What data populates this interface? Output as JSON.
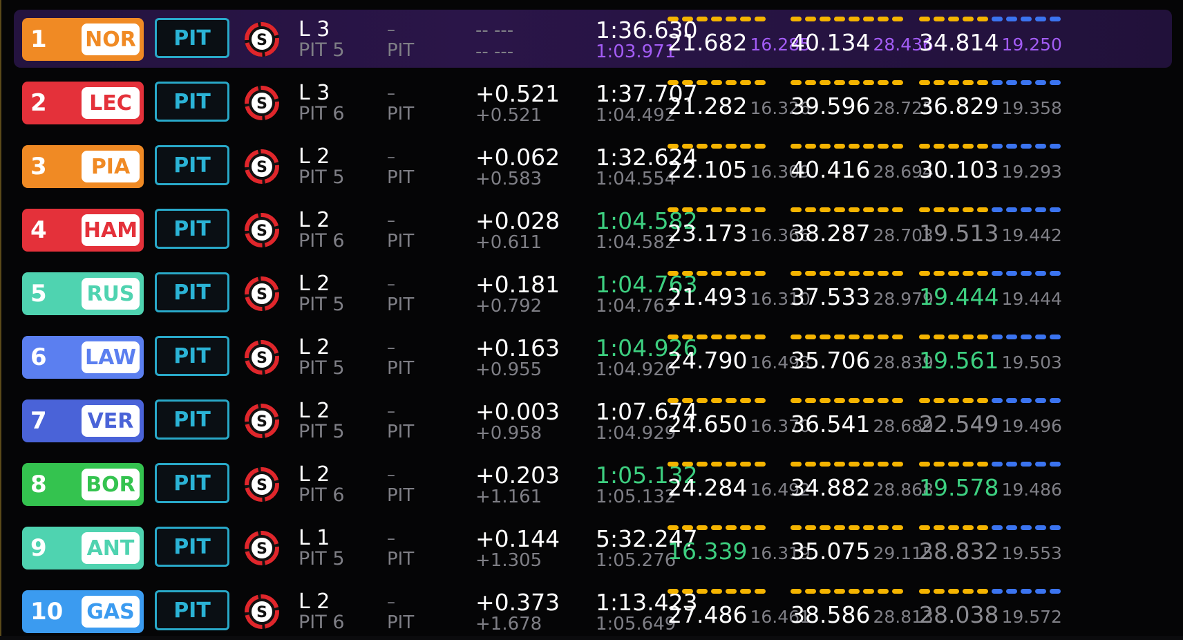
{
  "colors": {
    "bar_yellow": "#f5b400",
    "bar_blue": "#3b74f0",
    "pit": "#2bb3d6",
    "tyre_red": "#e0262b"
  },
  "rows": [
    {
      "pos": "1",
      "code": "NOR",
      "badge": "#f08a24",
      "code_color": "#f08a24",
      "pit": "PIT",
      "tyre": "S",
      "lap": "L 3",
      "pit_count": "PIT 5",
      "dash": "–",
      "pit_label": "PIT",
      "gap": "-- ---",
      "interval": "-- ---",
      "lap_time": "1:36.630",
      "best": "1:03.971",
      "best_cls": "purple",
      "lap_cls": "",
      "s1": "21.682",
      "s1b": "16.285",
      "s1cls": "",
      "s1bcls": "purple",
      "s2": "40.134",
      "s2b": "28.436",
      "s2cls": "",
      "s2bcls": "purple",
      "s3": "34.814",
      "s3b": "19.250",
      "s3cls": "",
      "s3bcls": "purple"
    },
    {
      "pos": "2",
      "code": "LEC",
      "badge": "#e4313a",
      "code_color": "#e4313a",
      "pit": "PIT",
      "tyre": "S",
      "lap": "L 3",
      "pit_count": "PIT 6",
      "dash": "–",
      "pit_label": "PIT",
      "gap": "+0.521",
      "interval": "+0.521",
      "lap_time": "1:37.707",
      "best": "1:04.492",
      "best_cls": "",
      "lap_cls": "",
      "s1": "21.282",
      "s1b": "16.326",
      "s1cls": "",
      "s1bcls": "",
      "s2": "39.596",
      "s2b": "28.725",
      "s2cls": "",
      "s2bcls": "",
      "s3": "36.829",
      "s3b": "19.358",
      "s3cls": "",
      "s3bcls": ""
    },
    {
      "pos": "3",
      "code": "PIA",
      "badge": "#f08a24",
      "code_color": "#f08a24",
      "pit": "PIT",
      "tyre": "S",
      "lap": "L 2",
      "pit_count": "PIT 5",
      "dash": "–",
      "pit_label": "PIT",
      "gap": "+0.062",
      "interval": "+0.583",
      "lap_time": "1:32.624",
      "best": "1:04.554",
      "best_cls": "",
      "lap_cls": "",
      "s1": "22.105",
      "s1b": "16.309",
      "s1cls": "",
      "s1bcls": "",
      "s2": "40.416",
      "s2b": "28.694",
      "s2cls": "",
      "s2bcls": "",
      "s3": "30.103",
      "s3b": "19.293",
      "s3cls": "",
      "s3bcls": ""
    },
    {
      "pos": "4",
      "code": "HAM",
      "badge": "#e4313a",
      "code_color": "#e4313a",
      "pit": "PIT",
      "tyre": "S",
      "lap": "L 2",
      "pit_count": "PIT 6",
      "dash": "–",
      "pit_label": "PIT",
      "gap": "+0.028",
      "interval": "+0.611",
      "lap_time": "1:04.582",
      "best": "1:04.582",
      "best_cls": "",
      "lap_cls": "green",
      "s1": "23.173",
      "s1b": "16.366",
      "s1cls": "",
      "s1bcls": "",
      "s2": "38.287",
      "s2b": "28.703",
      "s2cls": "",
      "s2bcls": "",
      "s3": "19.513",
      "s3b": "19.442",
      "s3cls": "grey",
      "s3bcls": ""
    },
    {
      "pos": "5",
      "code": "RUS",
      "badge": "#4fd3b0",
      "code_color": "#4fd3b0",
      "pit": "PIT",
      "tyre": "S",
      "lap": "L 2",
      "pit_count": "PIT 5",
      "dash": "–",
      "pit_label": "PIT",
      "gap": "+0.181",
      "interval": "+0.792",
      "lap_time": "1:04.763",
      "best": "1:04.763",
      "best_cls": "",
      "lap_cls": "green",
      "s1": "21.493",
      "s1b": "16.310",
      "s1cls": "",
      "s1bcls": "",
      "s2": "37.533",
      "s2b": "28.979",
      "s2cls": "",
      "s2bcls": "",
      "s3": "19.444",
      "s3b": "19.444",
      "s3cls": "green",
      "s3bcls": ""
    },
    {
      "pos": "6",
      "code": "LAW",
      "badge": "#5b7ff0",
      "code_color": "#5b7ff0",
      "pit": "PIT",
      "tyre": "S",
      "lap": "L 2",
      "pit_count": "PIT 5",
      "dash": "–",
      "pit_label": "PIT",
      "gap": "+0.163",
      "interval": "+0.955",
      "lap_time": "1:04.926",
      "best": "1:04.926",
      "best_cls": "",
      "lap_cls": "green",
      "s1": "24.790",
      "s1b": "16.493",
      "s1cls": "",
      "s1bcls": "",
      "s2": "35.706",
      "s2b": "28.839",
      "s2cls": "",
      "s2bcls": "",
      "s3": "19.561",
      "s3b": "19.503",
      "s3cls": "green",
      "s3bcls": ""
    },
    {
      "pos": "7",
      "code": "VER",
      "badge": "#4a63d8",
      "code_color": "#4a63d8",
      "pit": "PIT",
      "tyre": "S",
      "lap": "L 2",
      "pit_count": "PIT 5",
      "dash": "–",
      "pit_label": "PIT",
      "gap": "+0.003",
      "interval": "+0.958",
      "lap_time": "1:07.674",
      "best": "1:04.929",
      "best_cls": "",
      "lap_cls": "",
      "s1": "24.650",
      "s1b": "16.370",
      "s1cls": "",
      "s1bcls": "",
      "s2": "36.541",
      "s2b": "28.689",
      "s2cls": "",
      "s2bcls": "",
      "s3": "22.549",
      "s3b": "19.496",
      "s3cls": "grey",
      "s3bcls": ""
    },
    {
      "pos": "8",
      "code": "BOR",
      "badge": "#34c34f",
      "code_color": "#34c34f",
      "pit": "PIT",
      "tyre": "S",
      "lap": "L 2",
      "pit_count": "PIT 6",
      "dash": "–",
      "pit_label": "PIT",
      "gap": "+0.203",
      "interval": "+1.161",
      "lap_time": "1:05.132",
      "best": "1:05.132",
      "best_cls": "",
      "lap_cls": "green",
      "s1": "24.284",
      "s1b": "16.492",
      "s1cls": "",
      "s1bcls": "",
      "s2": "34.882",
      "s2b": "28.868",
      "s2cls": "",
      "s2bcls": "",
      "s3": "19.578",
      "s3b": "19.486",
      "s3cls": "green",
      "s3bcls": ""
    },
    {
      "pos": "9",
      "code": "ANT",
      "badge": "#4fd3b0",
      "code_color": "#4fd3b0",
      "pit": "PIT",
      "tyre": "S",
      "lap": "L 1",
      "pit_count": "PIT 5",
      "dash": "–",
      "pit_label": "PIT",
      "gap": "+0.144",
      "interval": "+1.305",
      "lap_time": "5:32.247",
      "best": "1:05.276",
      "best_cls": "",
      "lap_cls": "",
      "s1": "16.339",
      "s1b": "16.319",
      "s1cls": "green",
      "s1bcls": "",
      "s2": "35.075",
      "s2b": "29.115",
      "s2cls": "",
      "s2bcls": "",
      "s3": "28.832",
      "s3b": "19.553",
      "s3cls": "grey",
      "s3bcls": ""
    },
    {
      "pos": "10",
      "code": "GAS",
      "badge": "#3b9bf0",
      "code_color": "#3b9bf0",
      "pit": "PIT",
      "tyre": "S",
      "lap": "L 2",
      "pit_count": "PIT 6",
      "dash": "–",
      "pit_label": "PIT",
      "gap": "+0.373",
      "interval": "+1.678",
      "lap_time": "1:13.423",
      "best": "1:05.649",
      "best_cls": "",
      "lap_cls": "",
      "s1": "27.486",
      "s1b": "16.461",
      "s1cls": "",
      "s1bcls": "",
      "s2": "38.586",
      "s2b": "28.813",
      "s2cls": "",
      "s2bcls": "",
      "s3": "28.038",
      "s3b": "19.572",
      "s3cls": "grey",
      "s3bcls": ""
    }
  ],
  "sector_bars": {
    "s1": {
      "yellow": 7,
      "blue": 0
    },
    "s2": {
      "yellow": 8,
      "blue": 0
    },
    "s3": {
      "yellow": 5,
      "blue": 5
    }
  }
}
